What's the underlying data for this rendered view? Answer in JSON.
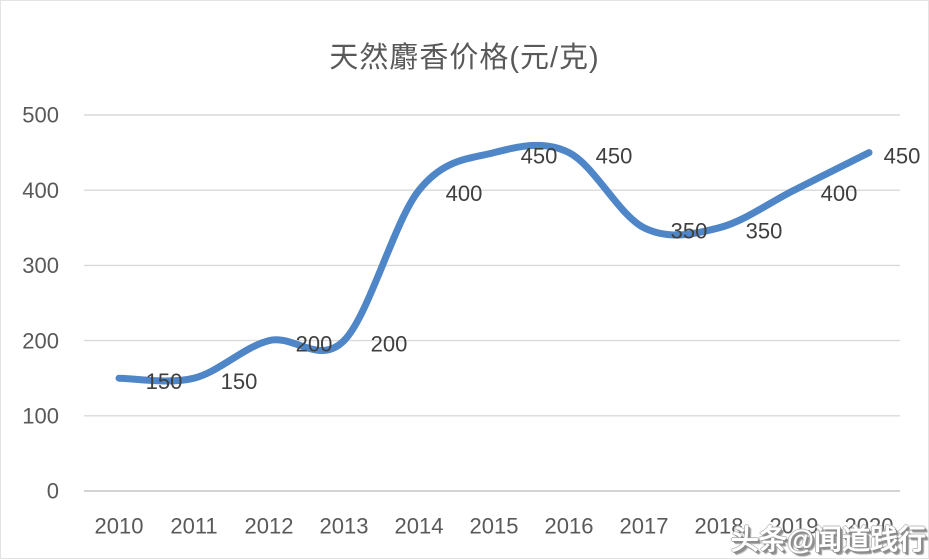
{
  "chart_data": {
    "type": "line",
    "title": "天然麝香价格(元/克)",
    "categories": [
      "2010",
      "2011",
      "2012",
      "2013",
      "2014",
      "2015",
      "2016",
      "2017",
      "2018",
      "2019",
      "2020"
    ],
    "series": [
      {
        "name": "天然麝香价格",
        "values": [
          150,
          150,
          200,
          200,
          400,
          450,
          450,
          350,
          350,
          400,
          450
        ]
      }
    ],
    "data_labels": [
      150,
      150,
      200,
      200,
      400,
      450,
      450,
      350,
      350,
      400,
      450
    ],
    "xlabel": "",
    "ylabel": "",
    "ylim": [
      0,
      500
    ],
    "y_ticks": [
      0,
      100,
      200,
      300,
      400,
      500
    ],
    "grid": "horizontal",
    "legend": "none",
    "smooth": true,
    "style": {
      "line_color": "#4e86c8",
      "gridline_color": "#d9d9d9",
      "axis_line_color": "#c6c6c6",
      "tick_label_color": "#595959",
      "data_label_color": "#3f3f3f",
      "title_color": "#595959",
      "background_color": "#ffffff"
    }
  },
  "watermark": {
    "text": "头条@闻道践行"
  }
}
